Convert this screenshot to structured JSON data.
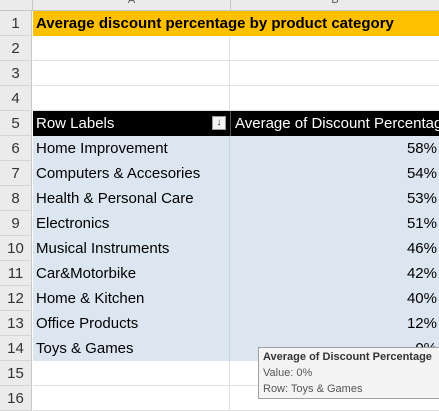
{
  "column_headers": [
    "A",
    "B"
  ],
  "title": "Average discount percentage by product category",
  "row_numbers": [
    "1",
    "2",
    "3",
    "4",
    "5",
    "6",
    "7",
    "8",
    "9",
    "10",
    "11",
    "12",
    "13",
    "14",
    "15",
    "16"
  ],
  "pivot": {
    "header_row_labels": "Row Labels",
    "header_values": "Average of Discount Percentage",
    "filter_icon": "filter-dropdown-icon",
    "rows": [
      {
        "label": "Home Improvement",
        "value": "58%"
      },
      {
        "label": "Computers & Accesories",
        "value": "54%"
      },
      {
        "label": "Health & Personal Care",
        "value": "53%"
      },
      {
        "label": "Electronics",
        "value": "51%"
      },
      {
        "label": "Musical Instruments",
        "value": "46%"
      },
      {
        "label": "Car&Motorbike",
        "value": "42%"
      },
      {
        "label": "Home & Kitchen",
        "value": "40%"
      },
      {
        "label": "Office Products",
        "value": "12%"
      },
      {
        "label": "Toys & Games",
        "value": "0%"
      }
    ]
  },
  "tooltip": {
    "title": "Average of Discount Percentage",
    "value_line": "Value: 0%",
    "row_line": "Row: Toys & Games"
  },
  "colors": {
    "title_fill": "#ffc000",
    "header_fill": "#000000",
    "row_fill": "#dce6f1"
  }
}
